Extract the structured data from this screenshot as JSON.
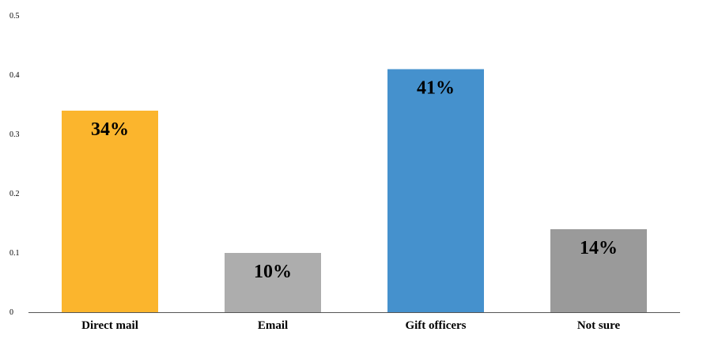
{
  "chart_data": {
    "type": "bar",
    "categories": [
      "Direct mail",
      "Email",
      "Gift officers",
      "Not sure"
    ],
    "values": [
      0.34,
      0.1,
      0.41,
      0.14
    ],
    "data_labels": [
      "34%",
      "10%",
      "41%",
      "14%"
    ],
    "bar_colors": [
      "#FBB52D",
      "#ADADAD",
      "#4591CD",
      "#9A9A9A"
    ],
    "yticks": [
      "0",
      "0.1",
      "0.2",
      "0.3",
      "0.4",
      "0.5"
    ],
    "ylim": [
      0,
      0.5
    ],
    "grid": false,
    "legend": "none"
  }
}
